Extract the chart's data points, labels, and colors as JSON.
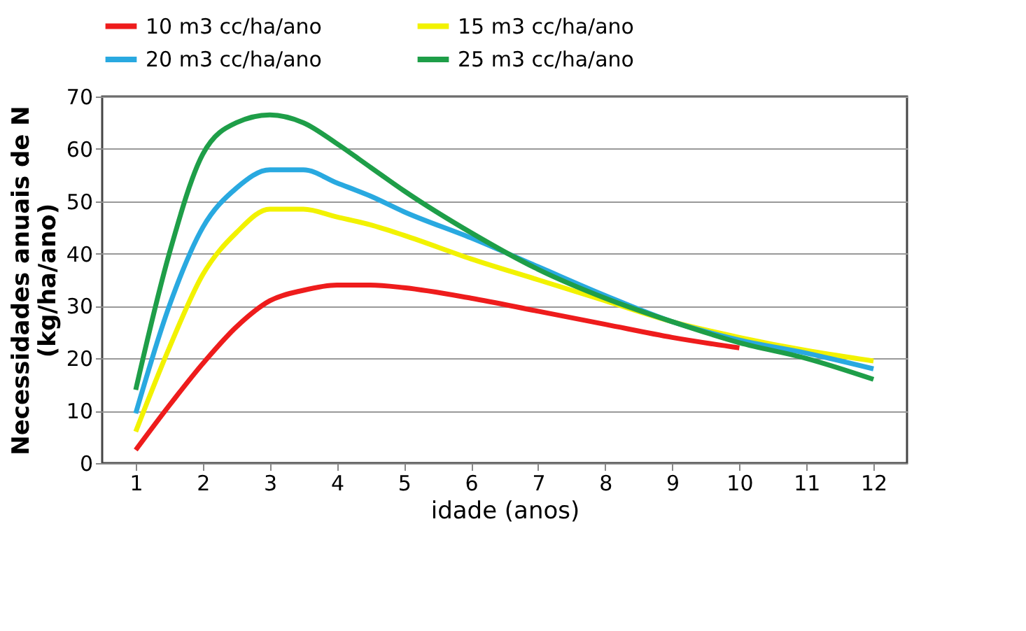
{
  "chart_data": {
    "type": "line",
    "xlabel": "idade (anos)",
    "ylabel": "Necessidades anuais de N\n(kg/ha/ano)",
    "x": [
      1,
      1.5,
      2,
      2.5,
      3,
      3.5,
      4,
      4.5,
      5,
      6,
      7,
      8,
      9,
      10,
      11,
      12
    ],
    "xlim": [
      0.5,
      12.5
    ],
    "xticks": [
      1,
      2,
      3,
      4,
      5,
      6,
      7,
      8,
      9,
      10,
      11,
      12
    ],
    "ylim": [
      0,
      70
    ],
    "yticks": [
      0,
      10,
      20,
      30,
      40,
      50,
      60,
      70
    ],
    "grid": "y",
    "legend": "top",
    "marker": "none",
    "line_style": "solid",
    "series": [
      {
        "name": "10 m3 cc/ha/ano",
        "color": "#ee1c1c",
        "values": [
          2.5,
          11,
          19,
          26,
          31,
          33,
          34,
          34,
          33.5,
          31.5,
          29,
          26.5,
          24,
          22,
          null,
          null
        ]
      },
      {
        "name": "15 m3 cc/ha/ano",
        "color": "#f2f200",
        "values": [
          6,
          22,
          36,
          44,
          48.5,
          48.5,
          47,
          45.5,
          43.5,
          39,
          35,
          31,
          27,
          24,
          21.5,
          19.5
        ]
      },
      {
        "name": "20 m3 cc/ha/ano",
        "color": "#29a9e0",
        "values": [
          9.5,
          30,
          45,
          52.5,
          56,
          56,
          53.5,
          51,
          48,
          43,
          37.5,
          32,
          27,
          23.5,
          21,
          18
        ]
      },
      {
        "name": "25 m3 cc/ha/ano",
        "color": "#1e9e48",
        "values": [
          14,
          40,
          59,
          65,
          66.5,
          65,
          61,
          56.5,
          52,
          44,
          37,
          31.5,
          27,
          23,
          20,
          16
        ]
      }
    ]
  }
}
